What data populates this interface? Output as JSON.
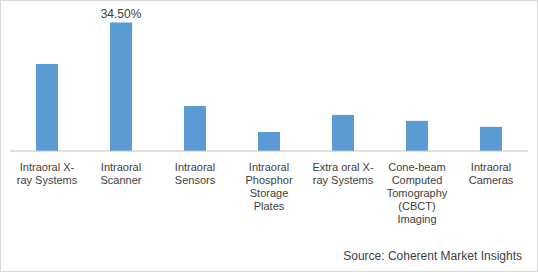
{
  "chart_data": {
    "type": "bar",
    "categories": [
      "Intraoral X-ray Systems",
      "Intraoral Scanner",
      "Intraoral Sensors",
      "Intraoral Phosphor Storage Plates",
      "Extra oral X-ray Systems",
      "Cone-beam Computed Tomography (CBCT) Imaging",
      "Intraoral Cameras"
    ],
    "values": [
      23.4,
      34.5,
      12.1,
      5.1,
      9.7,
      8.1,
      6.5
    ],
    "value_labels": [
      null,
      "34.50%",
      null,
      null,
      null,
      null,
      null
    ],
    "data_labels": true,
    "color": "#5b9bd5",
    "ylim": [
      0,
      36
    ],
    "tick_labels": "x",
    "grid": false,
    "source": "Source: Coherent Market Insights"
  }
}
